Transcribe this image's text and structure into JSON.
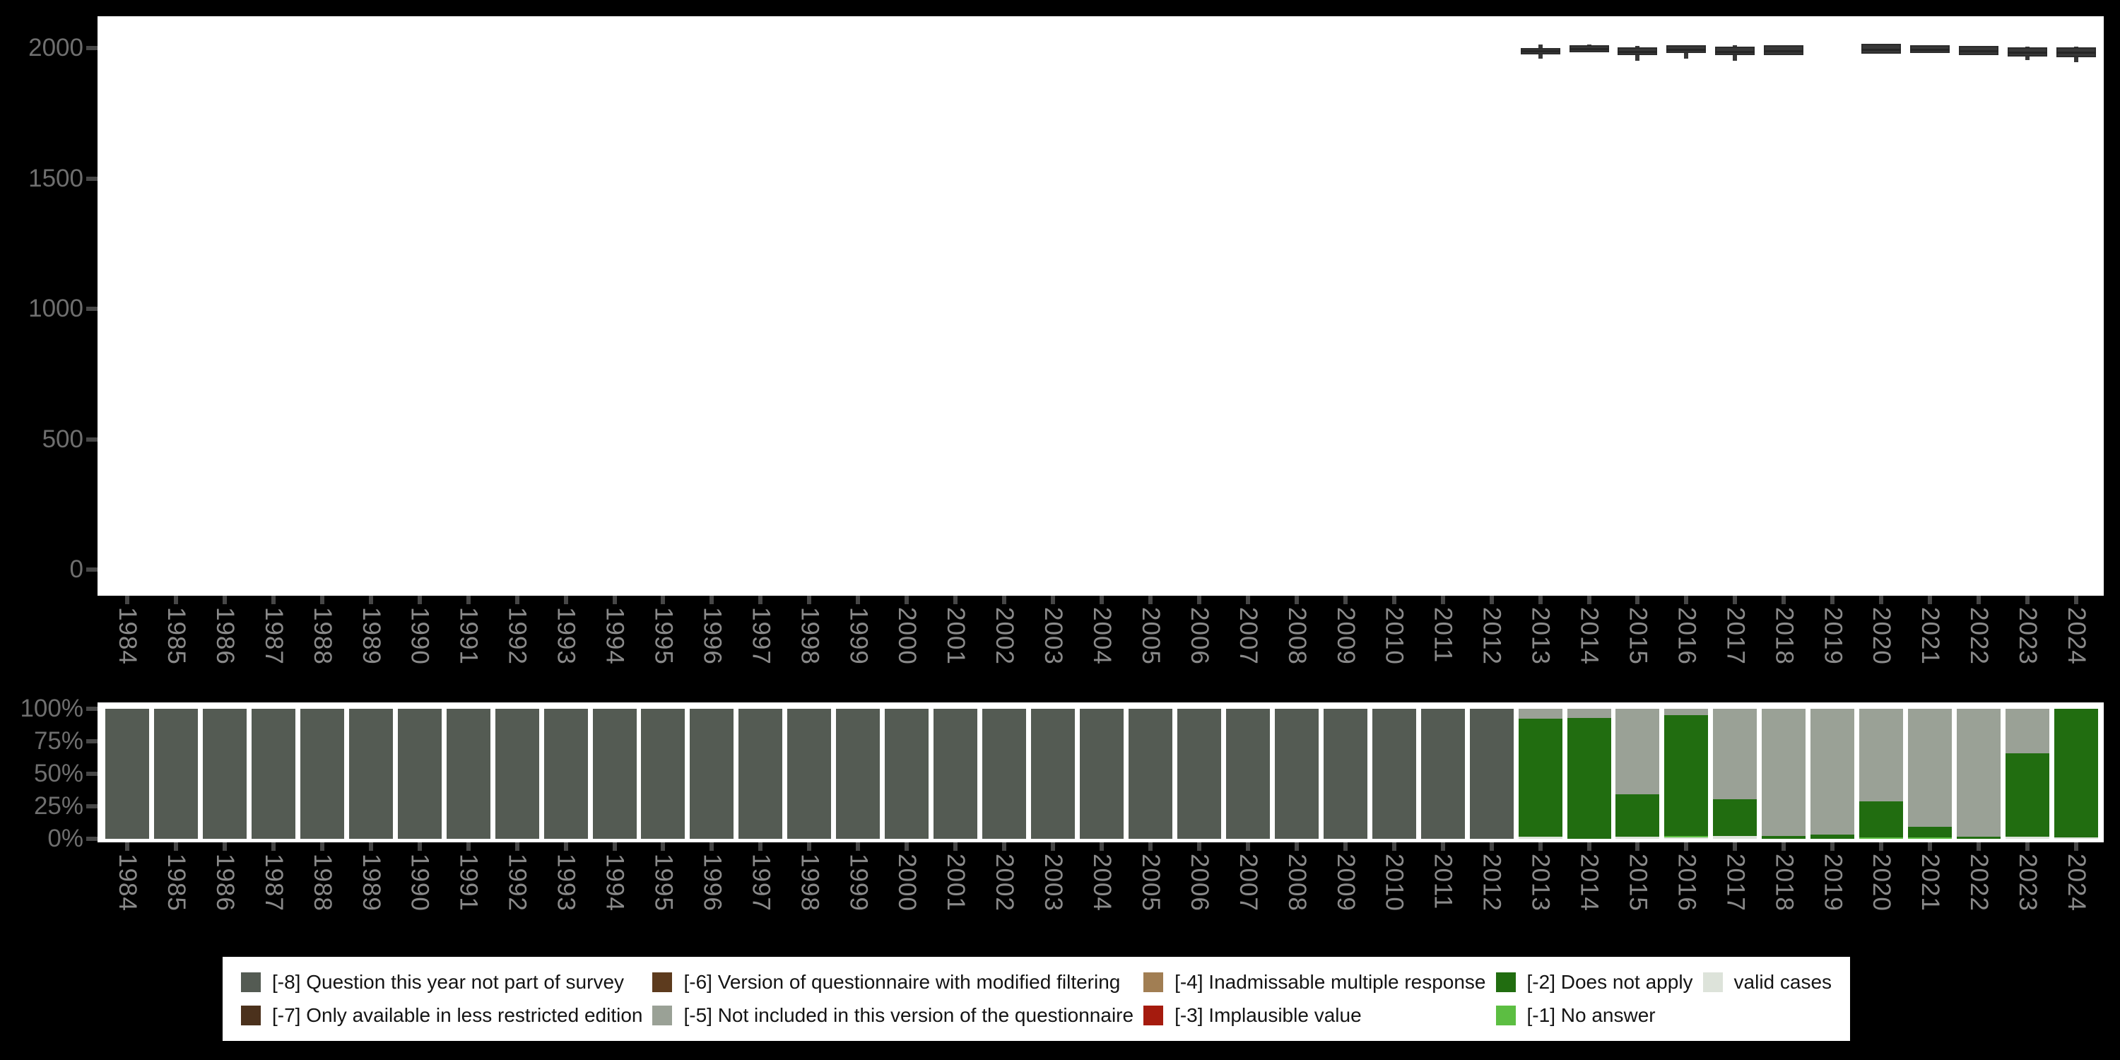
{
  "figure": {
    "background_color": "#000000",
    "years": [
      "1984",
      "1985",
      "1986",
      "1987",
      "1988",
      "1989",
      "1990",
      "1991",
      "1992",
      "1993",
      "1994",
      "1995",
      "1996",
      "1997",
      "1998",
      "1999",
      "2000",
      "2001",
      "2002",
      "2003",
      "2004",
      "2005",
      "2006",
      "2007",
      "2008",
      "2009",
      "2010",
      "2011",
      "2012",
      "2013",
      "2014",
      "2015",
      "2016",
      "2017",
      "2018",
      "2019",
      "2020",
      "2021",
      "2022",
      "2023",
      "2024"
    ]
  },
  "legend": {
    "entries": [
      {
        "code": "-8",
        "label": "[-8] Question this year not part of survey",
        "color": "#545b53"
      },
      {
        "code": "-7",
        "label": "[-7] Only available in less restricted edition",
        "color": "#4b311c"
      },
      {
        "code": "-6",
        "label": "[-6] Version of questionnaire with modified filtering",
        "color": "#5d3b1e"
      },
      {
        "code": "-5",
        "label": "[-5] Not included in this version of the questionnaire",
        "color": "#9aa196"
      },
      {
        "code": "-4",
        "label": "[-4] Inadmissable multiple response",
        "color": "#a17e53"
      },
      {
        "code": "-3",
        "label": "[-3] Implausible value",
        "color": "#a51b0e"
      },
      {
        "code": "-2",
        "label": "[-2] Does not apply",
        "color": "#216d10"
      },
      {
        "code": "-1",
        "label": "[-1] No answer",
        "color": "#5cbe42"
      },
      {
        "code": "valid",
        "label": "valid cases",
        "color": "#dde3da"
      }
    ]
  },
  "chart_data": [
    {
      "type": "boxplot",
      "title": "",
      "xlabel": "",
      "ylabel": "",
      "grid": false,
      "ylim": [
        0,
        2000
      ],
      "y_ticks": [
        {
          "label": "0",
          "value": 0
        },
        {
          "label": "500",
          "value": 500
        },
        {
          "label": "1000",
          "value": 1000
        },
        {
          "label": "1500",
          "value": 1500
        },
        {
          "label": "2000",
          "value": 2000
        }
      ],
      "box_color": "#383838",
      "boxes": [
        {
          "year": "2013",
          "low": 1960,
          "q1": 1976,
          "median": 1989,
          "q3": 2001,
          "high": 2013
        },
        {
          "year": "2014",
          "low": 1984,
          "q1": 1984,
          "median": 1998,
          "q3": 2012,
          "high": 2013
        },
        {
          "year": "2015",
          "low": 1952,
          "q1": 1972,
          "median": 1986,
          "q3": 2003,
          "high": 2008
        },
        {
          "year": "2016",
          "low": 1958,
          "q1": 1980,
          "median": 1994,
          "q3": 2010,
          "high": 2012
        },
        {
          "year": "2017",
          "low": 1952,
          "q1": 1972,
          "median": 1987,
          "q3": 2005,
          "high": 2010
        },
        {
          "year": "2018",
          "low": 1972,
          "q1": 1972,
          "median": 1990,
          "q3": 2011,
          "high": 2012
        },
        {
          "year": "2020",
          "low": 1977,
          "q1": 1977,
          "median": 1994,
          "q3": 2015,
          "high": 2016
        },
        {
          "year": "2021",
          "low": 1980,
          "q1": 1980,
          "median": 1995,
          "q3": 2011,
          "high": 2012
        },
        {
          "year": "2022",
          "low": 1972,
          "q1": 1972,
          "median": 1988,
          "q3": 2007,
          "high": 2008
        },
        {
          "year": "2023",
          "low": 1953,
          "q1": 1967,
          "median": 1984,
          "q3": 2004,
          "high": 2006
        },
        {
          "year": "2024",
          "low": 1946,
          "q1": 1965,
          "median": 1983,
          "q3": 2004,
          "high": 2006
        }
      ]
    },
    {
      "type": "stacked_bar_percent",
      "title": "",
      "xlabel": "",
      "ylabel": "",
      "grid": false,
      "ylim": [
        0,
        100
      ],
      "y_ticks": [
        {
          "label": "0%",
          "value": 0
        },
        {
          "label": "25%",
          "value": 25
        },
        {
          "label": "50%",
          "value": 50
        },
        {
          "label": "75%",
          "value": 75
        },
        {
          "label": "100%",
          "value": 100
        }
      ],
      "stack_order": "bottom to top as listed in segments",
      "bars": [
        {
          "year": "1984",
          "segments": [
            {
              "code": "-8",
              "pct": 100
            }
          ]
        },
        {
          "year": "1985",
          "segments": [
            {
              "code": "-8",
              "pct": 100
            }
          ]
        },
        {
          "year": "1986",
          "segments": [
            {
              "code": "-8",
              "pct": 100
            }
          ]
        },
        {
          "year": "1987",
          "segments": [
            {
              "code": "-8",
              "pct": 100
            }
          ]
        },
        {
          "year": "1988",
          "segments": [
            {
              "code": "-8",
              "pct": 100
            }
          ]
        },
        {
          "year": "1989",
          "segments": [
            {
              "code": "-8",
              "pct": 100
            }
          ]
        },
        {
          "year": "1990",
          "segments": [
            {
              "code": "-8",
              "pct": 100
            }
          ]
        },
        {
          "year": "1991",
          "segments": [
            {
              "code": "-8",
              "pct": 100
            }
          ]
        },
        {
          "year": "1992",
          "segments": [
            {
              "code": "-8",
              "pct": 100
            }
          ]
        },
        {
          "year": "1993",
          "segments": [
            {
              "code": "-8",
              "pct": 100
            }
          ]
        },
        {
          "year": "1994",
          "segments": [
            {
              "code": "-8",
              "pct": 100
            }
          ]
        },
        {
          "year": "1995",
          "segments": [
            {
              "code": "-8",
              "pct": 100
            }
          ]
        },
        {
          "year": "1996",
          "segments": [
            {
              "code": "-8",
              "pct": 100
            }
          ]
        },
        {
          "year": "1997",
          "segments": [
            {
              "code": "-8",
              "pct": 100
            }
          ]
        },
        {
          "year": "1998",
          "segments": [
            {
              "code": "-8",
              "pct": 100
            }
          ]
        },
        {
          "year": "1999",
          "segments": [
            {
              "code": "-8",
              "pct": 100
            }
          ]
        },
        {
          "year": "2000",
          "segments": [
            {
              "code": "-8",
              "pct": 100
            }
          ]
        },
        {
          "year": "2001",
          "segments": [
            {
              "code": "-8",
              "pct": 100
            }
          ]
        },
        {
          "year": "2002",
          "segments": [
            {
              "code": "-8",
              "pct": 100
            }
          ]
        },
        {
          "year": "2003",
          "segments": [
            {
              "code": "-8",
              "pct": 100
            }
          ]
        },
        {
          "year": "2004",
          "segments": [
            {
              "code": "-8",
              "pct": 100
            }
          ]
        },
        {
          "year": "2005",
          "segments": [
            {
              "code": "-8",
              "pct": 100
            }
          ]
        },
        {
          "year": "2006",
          "segments": [
            {
              "code": "-8",
              "pct": 100
            }
          ]
        },
        {
          "year": "2007",
          "segments": [
            {
              "code": "-8",
              "pct": 100
            }
          ]
        },
        {
          "year": "2008",
          "segments": [
            {
              "code": "-8",
              "pct": 100
            }
          ]
        },
        {
          "year": "2009",
          "segments": [
            {
              "code": "-8",
              "pct": 100
            }
          ]
        },
        {
          "year": "2010",
          "segments": [
            {
              "code": "-8",
              "pct": 100
            }
          ]
        },
        {
          "year": "2011",
          "segments": [
            {
              "code": "-8",
              "pct": 100
            }
          ]
        },
        {
          "year": "2012",
          "segments": [
            {
              "code": "-8",
              "pct": 100
            }
          ]
        },
        {
          "year": "2013",
          "segments": [
            {
              "code": "valid",
              "pct": 1.5
            },
            {
              "code": "-2",
              "pct": 91
            },
            {
              "code": "-5",
              "pct": 7.5
            }
          ]
        },
        {
          "year": "2014",
          "segments": [
            {
              "code": "-2",
              "pct": 93
            },
            {
              "code": "-5",
              "pct": 7
            }
          ]
        },
        {
          "year": "2015",
          "segments": [
            {
              "code": "valid",
              "pct": 1.5
            },
            {
              "code": "-2",
              "pct": 32.5
            },
            {
              "code": "-5",
              "pct": 66
            }
          ]
        },
        {
          "year": "2016",
          "segments": [
            {
              "code": "valid",
              "pct": 1
            },
            {
              "code": "-1",
              "pct": 1
            },
            {
              "code": "-2",
              "pct": 93
            },
            {
              "code": "-5",
              "pct": 5
            }
          ]
        },
        {
          "year": "2017",
          "segments": [
            {
              "code": "valid",
              "pct": 2
            },
            {
              "code": "-2",
              "pct": 28.5
            },
            {
              "code": "-5",
              "pct": 69.5
            }
          ]
        },
        {
          "year": "2018",
          "segments": [
            {
              "code": "-2",
              "pct": 2
            },
            {
              "code": "-5",
              "pct": 98
            }
          ]
        },
        {
          "year": "2019",
          "segments": [
            {
              "code": "-2",
              "pct": 3
            },
            {
              "code": "-5",
              "pct": 97
            }
          ]
        },
        {
          "year": "2020",
          "segments": [
            {
              "code": "-1",
              "pct": 1
            },
            {
              "code": "-2",
              "pct": 28
            },
            {
              "code": "-5",
              "pct": 71
            }
          ]
        },
        {
          "year": "2021",
          "segments": [
            {
              "code": "-1",
              "pct": 1
            },
            {
              "code": "-2",
              "pct": 8
            },
            {
              "code": "-5",
              "pct": 91
            }
          ]
        },
        {
          "year": "2022",
          "segments": [
            {
              "code": "-2",
              "pct": 1.5
            },
            {
              "code": "-5",
              "pct": 98.5
            }
          ]
        },
        {
          "year": "2023",
          "segments": [
            {
              "code": "valid",
              "pct": 1.5
            },
            {
              "code": "-2",
              "pct": 64.5
            },
            {
              "code": "-5",
              "pct": 34
            }
          ]
        },
        {
          "year": "2024",
          "segments": [
            {
              "code": "valid",
              "pct": 1
            },
            {
              "code": "-2",
              "pct": 99
            }
          ]
        }
      ]
    }
  ]
}
